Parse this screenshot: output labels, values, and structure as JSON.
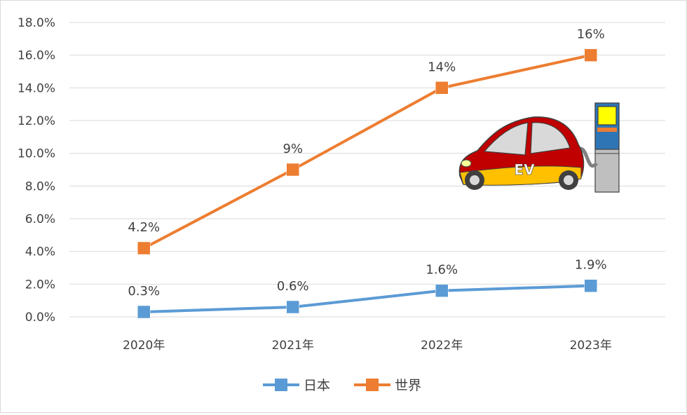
{
  "chart_data": {
    "type": "line",
    "title": "",
    "xlabel": "",
    "ylabel": "",
    "categories": [
      "2020年",
      "2021年",
      "2022年",
      "2023年"
    ],
    "ylim": [
      0,
      18
    ],
    "yticks": [
      0,
      2,
      4,
      6,
      8,
      10,
      12,
      14,
      16,
      18
    ],
    "ytick_labels": [
      "0.0%",
      "2.0%",
      "4.0%",
      "6.0%",
      "8.0%",
      "10.0%",
      "12.0%",
      "14.0%",
      "16.0%",
      "18.0%"
    ],
    "grid": "horizontal",
    "legend_position": "bottom",
    "series": [
      {
        "name": "日本",
        "color": "#5b9bd5",
        "values": [
          0.3,
          0.6,
          1.6,
          1.9
        ],
        "labels": [
          "0.3%",
          "0.6%",
          "1.6%",
          "1.9%"
        ]
      },
      {
        "name": "世界",
        "color": "#ed7d31",
        "values": [
          4.2,
          9,
          14,
          16
        ],
        "labels": [
          "4.2%",
          "9%",
          "14%",
          "16%"
        ]
      }
    ],
    "illustration": {
      "type": "ev-car-charging-icon",
      "car_text": "EV"
    }
  }
}
